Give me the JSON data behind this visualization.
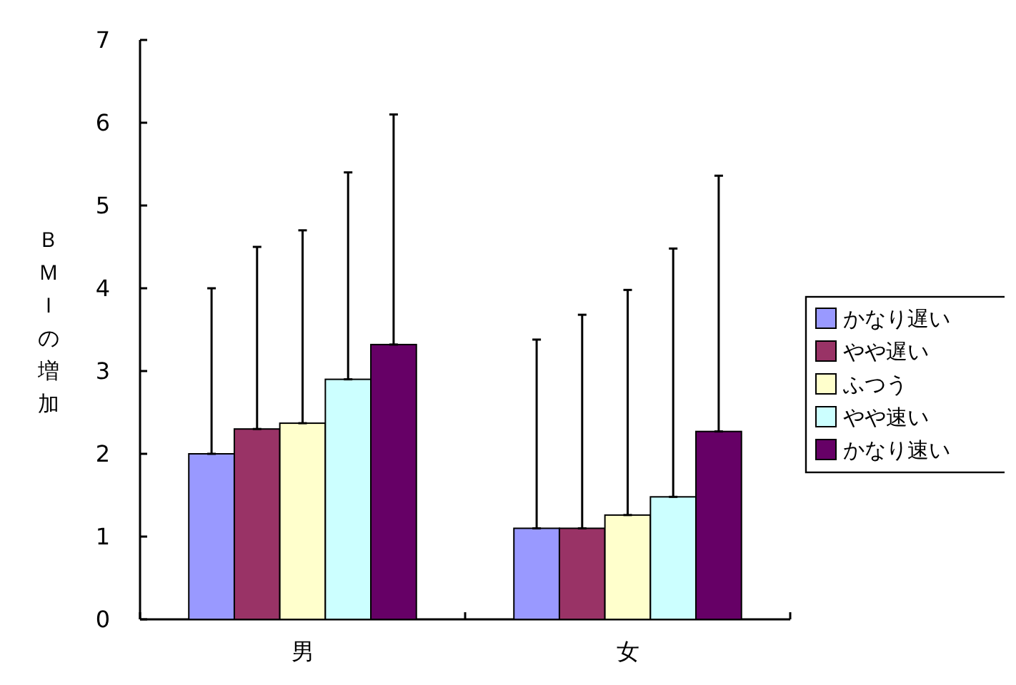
{
  "chart_data": {
    "type": "bar",
    "ylabel": "ＢＭＩの増加",
    "categories": [
      "男",
      "女"
    ],
    "ylim": [
      0,
      7
    ],
    "yticks": [
      0,
      1,
      2,
      3,
      4,
      5,
      6,
      7
    ],
    "grid": false,
    "legend": "right",
    "series": [
      {
        "name": "かなり遅い",
        "color": "#9999ff",
        "values": [
          2.0,
          1.1
        ],
        "errors": [
          [
            2.0,
            4.0
          ],
          [
            1.1,
            3.38
          ]
        ]
      },
      {
        "name": "やや遅い",
        "color": "#993366",
        "values": [
          2.3,
          1.1
        ],
        "errors": [
          [
            2.3,
            4.5
          ],
          [
            1.1,
            3.68
          ]
        ]
      },
      {
        "name": "ふつう",
        "color": "#ffffcc",
        "values": [
          2.37,
          1.26
        ],
        "errors": [
          [
            2.37,
            4.7
          ],
          [
            1.26,
            3.98
          ]
        ]
      },
      {
        "name": "やや速い",
        "color": "#ccffff",
        "values": [
          2.9,
          1.48
        ],
        "errors": [
          [
            2.9,
            5.4
          ],
          [
            1.48,
            4.48
          ]
        ]
      },
      {
        "name": "かなり速い",
        "color": "#660066",
        "values": [
          3.32,
          2.27
        ],
        "errors": [
          [
            3.32,
            6.1
          ],
          [
            2.27,
            5.36
          ]
        ]
      }
    ]
  }
}
